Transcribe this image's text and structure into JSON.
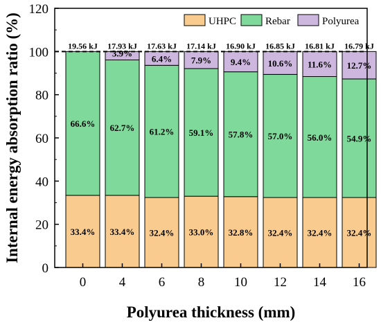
{
  "chart_data": {
    "type": "bar",
    "stacked": true,
    "categories": [
      "0",
      "4",
      "6",
      "8",
      "10",
      "12",
      "14",
      "16"
    ],
    "series": [
      {
        "name": "UHPC",
        "color": "#f9cb8f",
        "values": [
          33.4,
          33.4,
          32.4,
          33.0,
          32.8,
          32.4,
          32.4,
          32.4
        ],
        "labels": [
          "33.4%",
          "33.4%",
          "32.4%",
          "33.0%",
          "32.8%",
          "32.4%",
          "32.4%",
          "32.4%"
        ]
      },
      {
        "name": "Rebar",
        "color": "#7fd99a",
        "values": [
          66.6,
          62.7,
          61.2,
          59.1,
          57.8,
          57.0,
          56.0,
          54.9
        ],
        "labels": [
          "66.6%",
          "62.7%",
          "61.2%",
          "59.1%",
          "57.8%",
          "57.0%",
          "56.0%",
          "54.9%"
        ]
      },
      {
        "name": "Polyurea",
        "color": "#cdb7de",
        "values": [
          0,
          3.9,
          6.4,
          7.9,
          9.4,
          10.6,
          11.6,
          12.7
        ],
        "labels": [
          "",
          "3.9%",
          "6.4%",
          "7.9%",
          "9.4%",
          "10.6%",
          "11.6%",
          "12.7%"
        ]
      }
    ],
    "totals": [
      "19.56 kJ",
      "17.93 kJ",
      "17.63 kJ",
      "17.14 kJ",
      "16.90 kJ",
      "16.85 kJ",
      "16.81 kJ",
      "16.79 kJ"
    ],
    "xlabel": "Polyurea thickness (mm)",
    "ylabel": "Internal energy absorption ratio (%)",
    "ylim": [
      0,
      120
    ],
    "yticks": [
      0,
      20,
      40,
      60,
      80,
      100,
      120
    ],
    "reference_line": 100,
    "legend_position": "top-right",
    "grid": false
  }
}
